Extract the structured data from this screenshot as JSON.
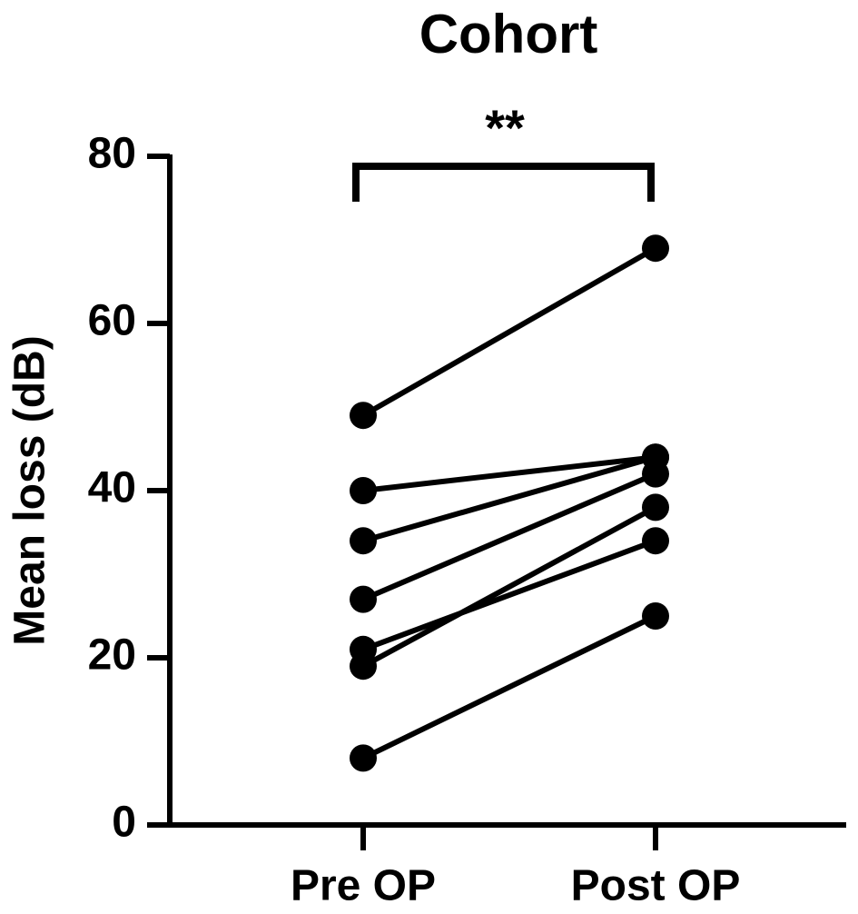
{
  "chart_data": {
    "type": "line",
    "title": "Cohort",
    "y_label": "Mean loss (dB)",
    "categories": [
      "Pre OP",
      "Post OP"
    ],
    "series": [
      {
        "color": "#000000",
        "values": [
          49,
          69
        ]
      },
      {
        "color": "#000000",
        "values": [
          40,
          44
        ]
      },
      {
        "color": "#000000",
        "values": [
          34,
          44
        ]
      },
      {
        "color": "#000000",
        "values": [
          27,
          42
        ]
      },
      {
        "color": "#000000",
        "values": [
          21,
          34
        ]
      },
      {
        "color": "#000000",
        "values": [
          19,
          38
        ]
      },
      {
        "color": "#000000",
        "values": [
          8,
          25
        ]
      }
    ],
    "ylim": [
      0,
      80
    ],
    "yticks": [
      0,
      20,
      40,
      60,
      80
    ],
    "annotation": "**"
  }
}
